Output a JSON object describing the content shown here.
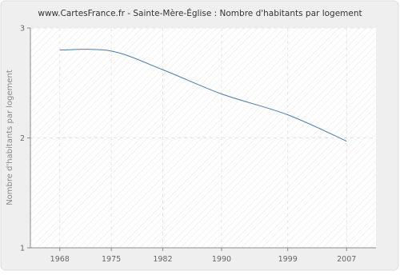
{
  "chart_data": {
    "type": "line",
    "title": "www.CartesFrance.fr - Sainte-Mère-Église : Nombre d'habitants par logement",
    "y_label": "Nombre d'habitants par logement",
    "x": [
      1968,
      1975,
      1982,
      1990,
      1999,
      2007
    ],
    "series": [
      {
        "name": "Nombre d'habitants par logement",
        "color": "#4a7aab",
        "values": [
          2.8,
          2.79,
          2.62,
          2.4,
          2.21,
          1.97
        ]
      }
    ],
    "xlim": [
      1964,
      2011
    ],
    "xticks": [
      1968,
      1975,
      1982,
      1990,
      1999,
      2007
    ],
    "ylim": [
      1,
      3
    ],
    "yticks": [
      1,
      2,
      3
    ],
    "grid": true
  }
}
